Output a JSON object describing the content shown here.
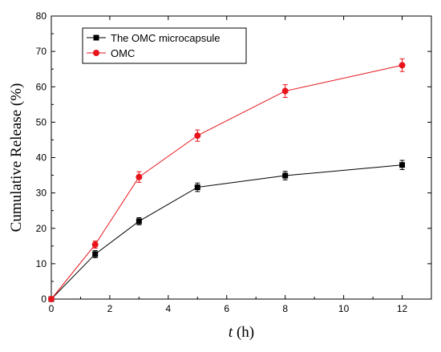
{
  "chart_data": {
    "type": "line",
    "xlabel": {
      "variable": "t",
      "unit": " (h)"
    },
    "ylabel": "Cumulative Release (%)",
    "xlim": [
      0,
      13
    ],
    "ylim": [
      0,
      80
    ],
    "xticks": [
      0,
      2,
      4,
      6,
      8,
      10,
      12
    ],
    "yticks": [
      0,
      10,
      20,
      30,
      40,
      50,
      60,
      70,
      80
    ],
    "grid": false,
    "legend": "top-left",
    "series": [
      {
        "name": "The OMC microcapsule",
        "color": "#000000",
        "marker": "square",
        "x": [
          0,
          1.5,
          3,
          5,
          8,
          12
        ],
        "y": [
          0,
          12.7,
          22.0,
          31.6,
          34.9,
          37.9
        ],
        "error": [
          0,
          1.0,
          1.0,
          1.2,
          1.2,
          1.3
        ]
      },
      {
        "name": "OMC",
        "color": "#e8141b",
        "marker": "circle",
        "x": [
          0,
          1.5,
          3,
          5,
          8,
          12
        ],
        "y": [
          0,
          15.4,
          34.5,
          46.2,
          58.8,
          66.1
        ],
        "error": [
          0,
          1.0,
          1.5,
          1.6,
          1.8,
          1.8
        ]
      }
    ]
  }
}
